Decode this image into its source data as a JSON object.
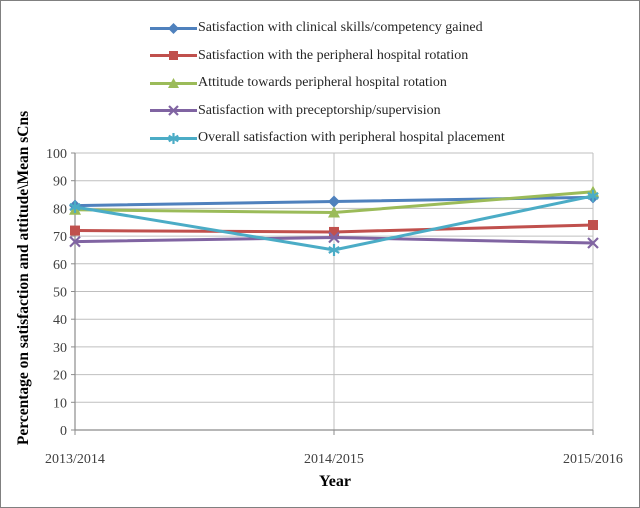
{
  "chart_data": {
    "type": "line",
    "title": "",
    "xlabel": "Year",
    "ylabel": "Percentage on satisfaction and attitude\\Mean sCns",
    "categories": [
      "2013/2014",
      "2014/2015",
      "2015/2016"
    ],
    "ylim": [
      0,
      100
    ],
    "ytick_step": 10,
    "grid": true,
    "legend_position": "top-left",
    "colors": {
      "axis": "#8c8c8c",
      "gridline": "#bfbfbf",
      "tick_label": "#404040",
      "legend_text": "#262626",
      "border": "#808080"
    },
    "series": [
      {
        "name": "Satisfaction with clinical skills/competency gained",
        "color": "#4F81BD",
        "marker": "diamond",
        "values": [
          81,
          82.5,
          84
        ]
      },
      {
        "name": "Satisfaction with the peripheral hospital rotation",
        "color": "#C0504D",
        "marker": "square",
        "values": [
          72,
          71.5,
          74
        ]
      },
      {
        "name": "Attitude towards peripheral hospital rotation",
        "color": "#9BBB59",
        "marker": "triangle",
        "values": [
          79.5,
          78.5,
          86
        ]
      },
      {
        "name": "Satisfaction with preceptorship/supervision",
        "color": "#8064A2",
        "marker": "x",
        "values": [
          68,
          69.5,
          67.5
        ]
      },
      {
        "name": "Overall satisfaction with peripheral hospital placement",
        "color": "#4BACC6",
        "marker": "asterisk",
        "values": [
          80.5,
          65,
          84.5
        ]
      }
    ]
  }
}
